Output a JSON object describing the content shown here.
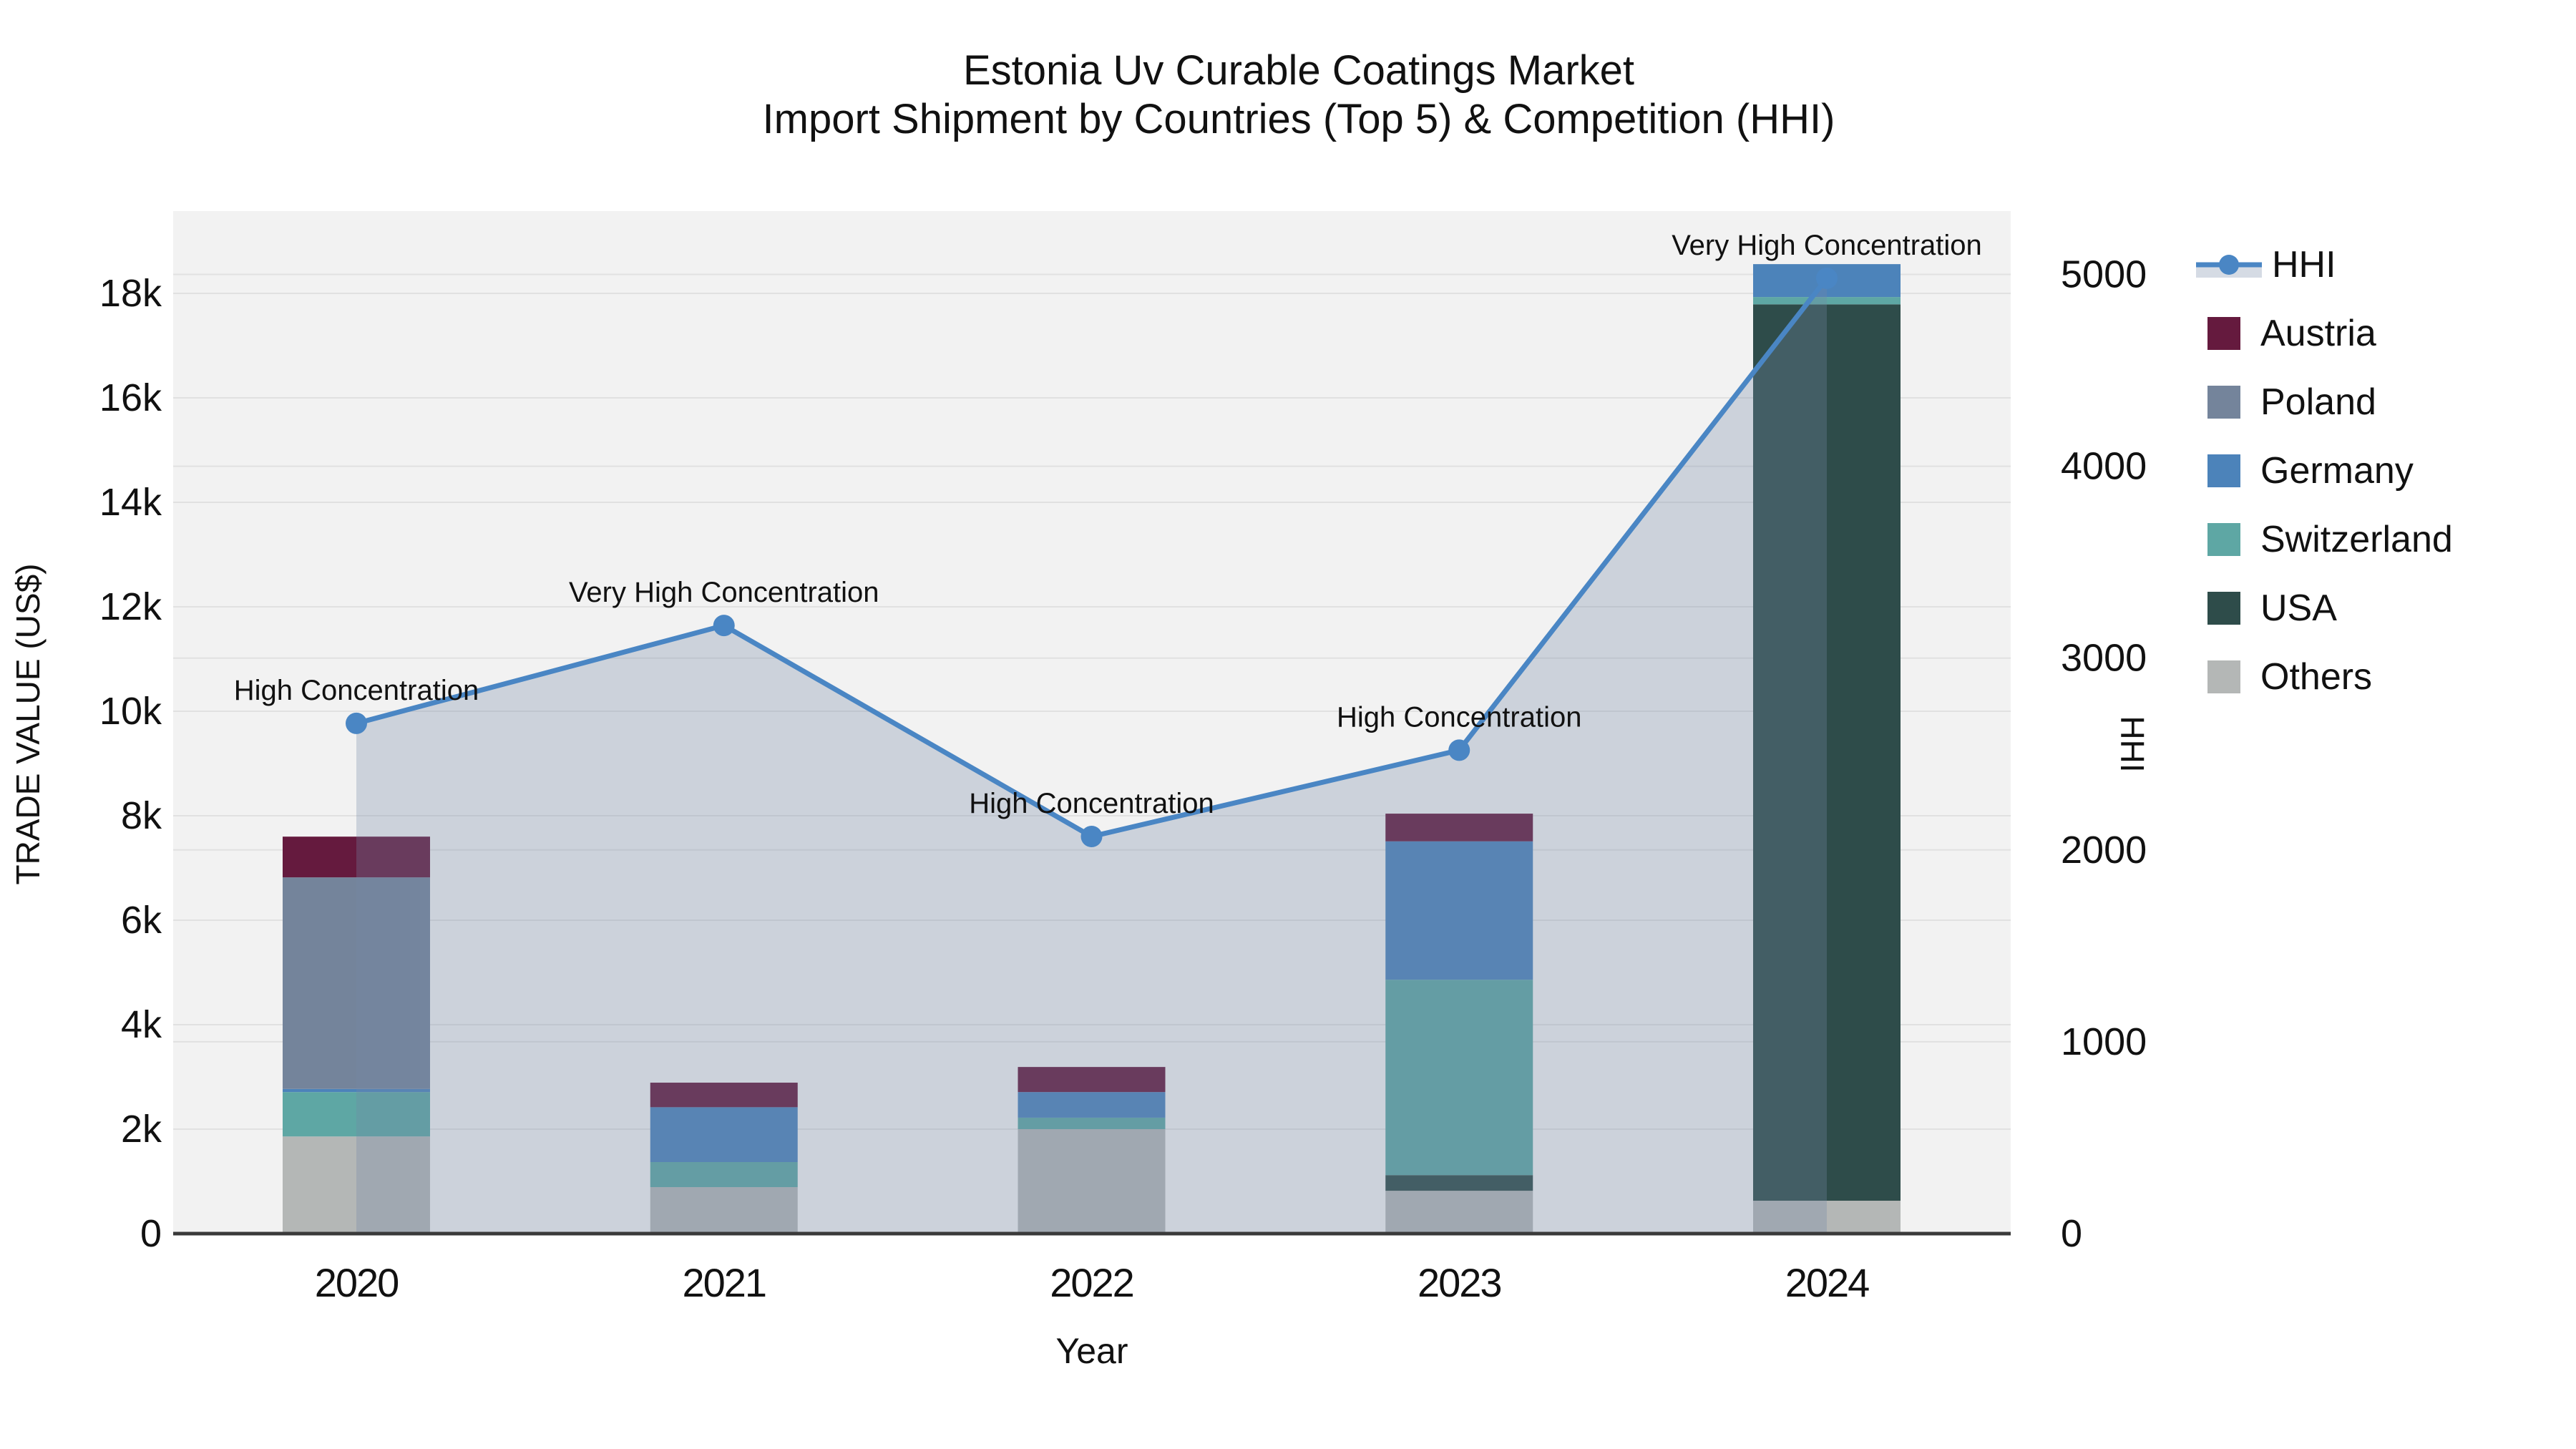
{
  "title": {
    "line1": "Estonia Uv Curable Coatings Market",
    "line2": "Import Shipment by Countries (Top 5) & Competition (HHI)"
  },
  "axes": {
    "x": {
      "label": "Year",
      "tick_labels": [
        "2020",
        "2021",
        "2022",
        "2023",
        "2024"
      ]
    },
    "y_left": {
      "label": "TRADE VALUE (US$)",
      "tick_labels": [
        "0",
        "2k",
        "4k",
        "6k",
        "8k",
        "10k",
        "12k",
        "14k",
        "16k",
        "18k"
      ],
      "tick_values": [
        0,
        2000,
        4000,
        6000,
        8000,
        10000,
        12000,
        14000,
        16000,
        18000
      ]
    },
    "y_right": {
      "label": "HHI",
      "tick_labels": [
        "0",
        "1000",
        "2000",
        "3000",
        "4000",
        "5000"
      ],
      "tick_values": [
        0,
        1000,
        2000,
        3000,
        4000,
        5000
      ]
    }
  },
  "legend": [
    {
      "label": "HHI",
      "type": "line",
      "color": "#4a86c4"
    },
    {
      "label": "Austria",
      "type": "swatch",
      "color": "#651a3e"
    },
    {
      "label": "Poland",
      "type": "swatch",
      "color": "#74849b"
    },
    {
      "label": "Germany",
      "type": "swatch",
      "color": "#4c83ba"
    },
    {
      "label": "Switzerland",
      "type": "swatch",
      "color": "#5ea7a4"
    },
    {
      "label": "USA",
      "type": "swatch",
      "color": "#2e4c4a"
    },
    {
      "label": "Others",
      "type": "swatch",
      "color": "#b4b7b6"
    }
  ],
  "style": {
    "figure_bg": "#ffffff",
    "plot_bg": "#f2f2f2",
    "grid_color": "#e1e1e1",
    "axis_line_color": "#3a3a3a",
    "hhi_line_color": "#4a86c4",
    "hhi_area_fill": "rgba(115,135,165,0.30)"
  },
  "chart_data": {
    "type": "combo: stacked-bar + line-area",
    "categories": [
      2020,
      2021,
      2022,
      2023,
      2024
    ],
    "bar_axis": "left",
    "bar_stack_order": "bottom-to-top",
    "series": [
      {
        "name": "Others",
        "color": "#b4b7b6",
        "values": [
          1860,
          890,
          2000,
          820,
          630
        ]
      },
      {
        "name": "USA",
        "color": "#2e4c4a",
        "values": [
          0,
          0,
          0,
          300,
          17160
        ]
      },
      {
        "name": "Switzerland",
        "color": "#5ea7a4",
        "values": [
          850,
          480,
          220,
          3740,
          140
        ]
      },
      {
        "name": "Germany",
        "color": "#4c83ba",
        "values": [
          60,
          1050,
          490,
          2650,
          630
        ]
      },
      {
        "name": "Poland",
        "color": "#74849b",
        "values": [
          4050,
          0,
          0,
          0,
          0
        ]
      },
      {
        "name": "Austria",
        "color": "#651a3e",
        "values": [
          780,
          470,
          480,
          530,
          0
        ]
      }
    ],
    "bar_totals": [
      7600,
      2890,
      3190,
      8040,
      18560
    ],
    "line_series": {
      "name": "HHI",
      "axis": "right",
      "values": [
        2660,
        3170,
        2070,
        2520,
        4980
      ],
      "color": "#4a86c4",
      "area_fill": true
    },
    "annotations": [
      {
        "x": 2020,
        "text": "High Concentration"
      },
      {
        "x": 2021,
        "text": "Very High Concentration"
      },
      {
        "x": 2022,
        "text": "High Concentration"
      },
      {
        "x": 2023,
        "text": "High Concentration"
      },
      {
        "x": 2024,
        "text": "Very High Concentration"
      }
    ],
    "title": "Estonia Uv Curable Coatings Market — Import Shipment by Countries (Top 5) & Competition (HHI)",
    "xlabel": "Year",
    "ylabel_left": "TRADE VALUE (US$)",
    "ylabel_right": "HHI",
    "ylim_left": [
      0,
      19580
    ],
    "ylim_right": [
      0,
      5330
    ],
    "grid": true,
    "legend_position": "right"
  }
}
